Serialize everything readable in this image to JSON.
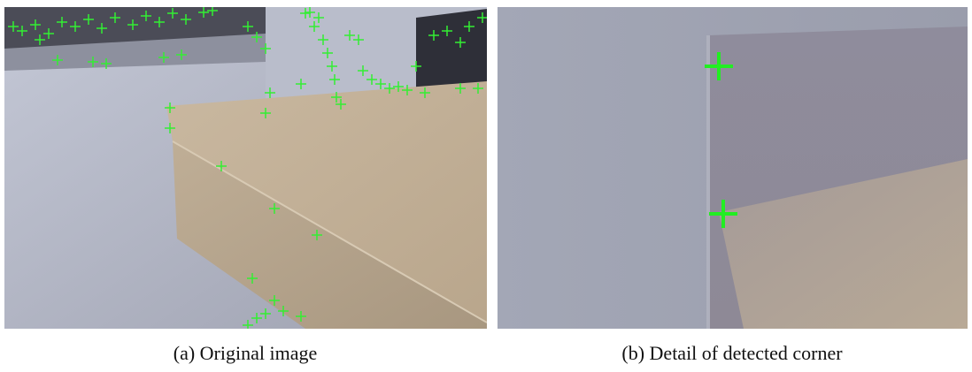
{
  "figure": {
    "panels": [
      {
        "caption": "(a) Original image"
      },
      {
        "caption": "(b) Detail of detected corner"
      }
    ]
  }
}
